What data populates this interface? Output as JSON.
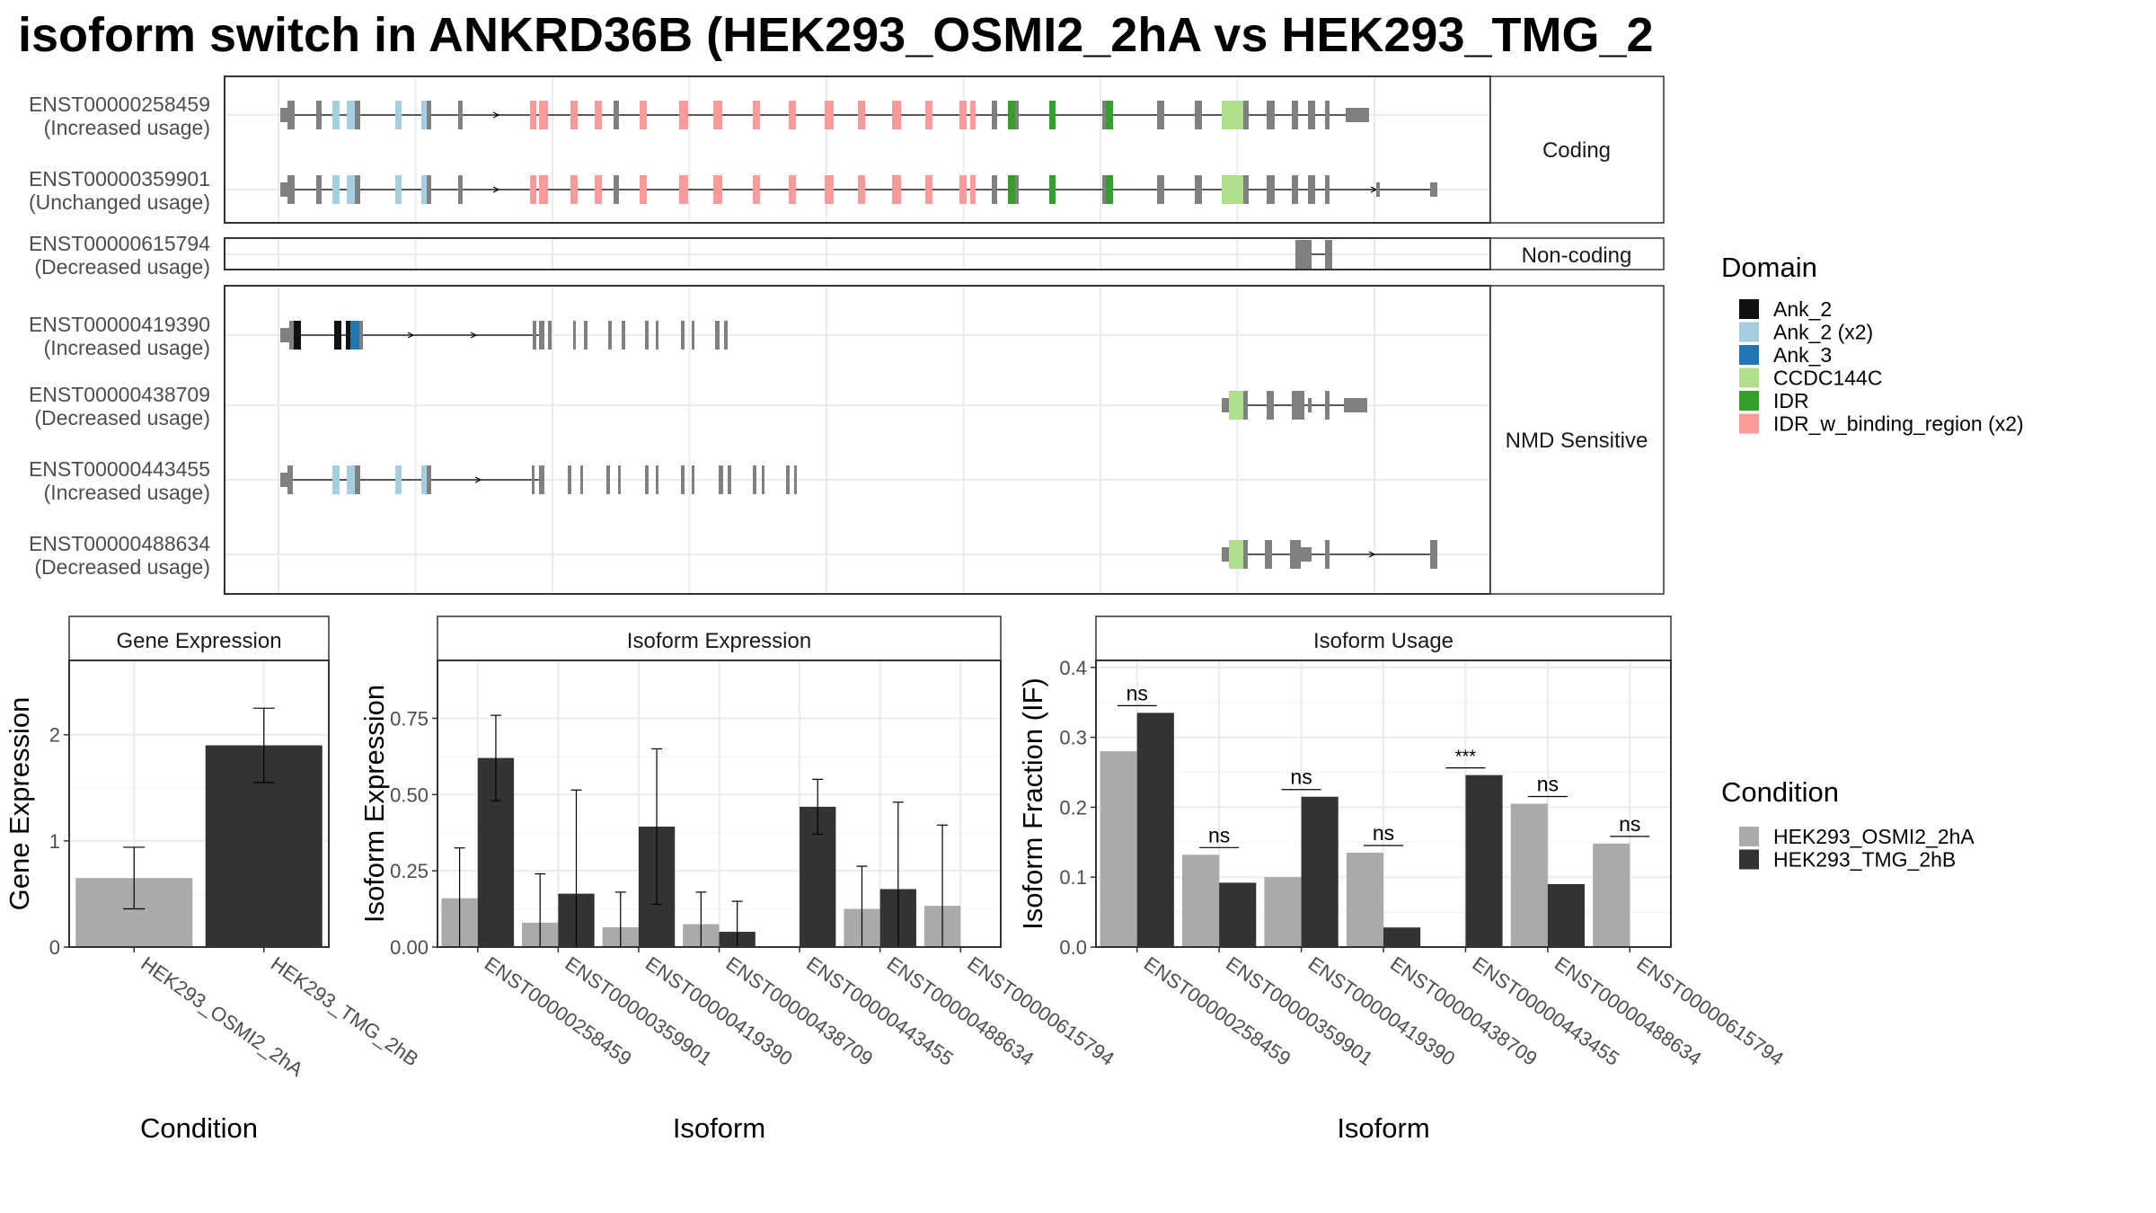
{
  "title": "isoform switch in ANKRD36B (HEK293_OSMI2_2hA vs HEK293_TMG_2",
  "structure": {
    "isoforms": [
      {
        "id": "ENST00000258459",
        "note": "(Increased usage)"
      },
      {
        "id": "ENST00000359901",
        "note": "(Unchanged usage)"
      },
      {
        "id": "ENST00000615794",
        "note": "(Decreased usage)"
      },
      {
        "id": "ENST00000419390",
        "note": "(Increased usage)"
      },
      {
        "id": "ENST00000438709",
        "note": "(Decreased usage)"
      },
      {
        "id": "ENST00000443455",
        "note": "(Increased usage)"
      },
      {
        "id": "ENST00000488634",
        "note": "(Decreased usage)"
      }
    ],
    "facets": [
      "Coding",
      "Non-coding",
      "NMD Sensitive"
    ]
  },
  "domain_legend": {
    "title": "Domain",
    "items": [
      {
        "label": "Ank_2",
        "color": "#111111"
      },
      {
        "label": "Ank_2 (x2)",
        "color": "#a6cee3"
      },
      {
        "label": "Ank_3",
        "color": "#1f78b4"
      },
      {
        "label": "CCDC144C",
        "color": "#b2df8a"
      },
      {
        "label": "IDR",
        "color": "#33a02c"
      },
      {
        "label": "IDR_w_binding_region (x2)",
        "color": "#fb9a99"
      }
    ]
  },
  "condition_legend": {
    "title": "Condition",
    "items": [
      {
        "label": "HEK293_OSMI2_2hA",
        "color": "#aaaaaa"
      },
      {
        "label": "HEK293_TMG_2hB",
        "color": "#333333"
      }
    ]
  },
  "chart_data": [
    {
      "type": "bar",
      "panel": "Gene Expression",
      "categories": [
        "HEK293_OSMI2_2hA",
        "HEK293_TMG_2hB"
      ],
      "values": [
        0.65,
        1.9
      ],
      "errors": [
        [
          0.36,
          0.94
        ],
        [
          1.55,
          2.25
        ]
      ],
      "xlabel": "Condition",
      "ylabel": "Gene Expression",
      "ylim": [
        0,
        2.7
      ],
      "yticks": [
        0,
        1,
        2
      ]
    },
    {
      "type": "bar",
      "panel": "Isoform Expression",
      "categories": [
        "ENST00000258459",
        "ENST00000359901",
        "ENST00000419390",
        "ENST00000438709",
        "ENST00000443455",
        "ENST00000488634",
        "ENST00000615794"
      ],
      "series": [
        {
          "name": "HEK293_OSMI2_2hA",
          "values": [
            0.16,
            0.08,
            0.065,
            0.075,
            0.0,
            0.125,
            0.135
          ],
          "errors": [
            [
              0.0,
              0.325
            ],
            [
              0.0,
              0.24
            ],
            [
              0.0,
              0.18
            ],
            [
              0.0,
              0.18
            ],
            null,
            [
              0.0,
              0.265
            ],
            [
              0.0,
              0.4
            ]
          ]
        },
        {
          "name": "HEK293_TMG_2hB",
          "values": [
            0.62,
            0.175,
            0.395,
            0.05,
            0.46,
            0.19,
            0.0
          ],
          "errors": [
            [
              0.48,
              0.76
            ],
            [
              0.0,
              0.515
            ],
            [
              0.14,
              0.65
            ],
            [
              0.0,
              0.15
            ],
            [
              0.37,
              0.55
            ],
            [
              0.0,
              0.475
            ],
            null
          ]
        }
      ],
      "xlabel": "Isoform",
      "ylabel": "Isoform Expression",
      "ylim": [
        0,
        0.94
      ],
      "yticks": [
        0.0,
        0.25,
        0.5,
        0.75
      ],
      "yticklabels": [
        "0.00",
        "0.25",
        "0.50",
        "0.75"
      ]
    },
    {
      "type": "bar",
      "panel": "Isoform Usage",
      "categories": [
        "ENST00000258459",
        "ENST00000359901",
        "ENST00000419390",
        "ENST00000438709",
        "ENST00000443455",
        "ENST00000488634",
        "ENST00000615794"
      ],
      "series": [
        {
          "name": "HEK293_OSMI2_2hA",
          "values": [
            0.28,
            0.132,
            0.1,
            0.135,
            0.0,
            0.205,
            0.148
          ]
        },
        {
          "name": "HEK293_TMG_2hB",
          "values": [
            0.335,
            0.092,
            0.215,
            0.028,
            0.246,
            0.09,
            0.0
          ]
        }
      ],
      "significance": [
        "ns",
        "ns",
        "ns",
        "ns",
        "***",
        "ns",
        "ns"
      ],
      "xlabel": "Isoform",
      "ylabel": "Isoform Fraction (IF)",
      "ylim": [
        0,
        0.41
      ],
      "yticks": [
        0.0,
        0.1,
        0.2,
        0.3,
        0.4
      ],
      "yticklabels": [
        "0.0",
        "0.1",
        "0.2",
        "0.3",
        "0.4"
      ]
    }
  ]
}
